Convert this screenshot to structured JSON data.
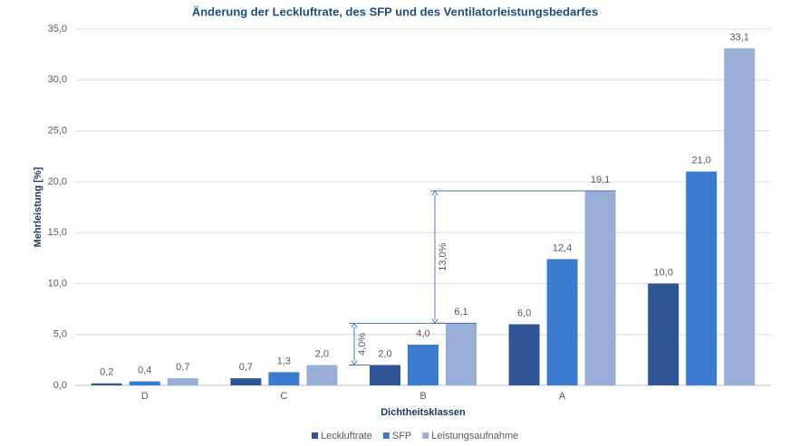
{
  "chart_data": {
    "type": "bar",
    "title": "Änderung der Leckluftrate, des SFP und des Ventilatorleistungsbedarfes",
    "x_label": "Dichtheitsklassen",
    "y_label": "Mehrleistung [%]",
    "categories": [
      "D",
      "C",
      "B",
      "A",
      null
    ],
    "series": [
      {
        "name": "Leckluftrate",
        "color": "#2f5597",
        "values": [
          0.2,
          0.7,
          2.0,
          6.0,
          10.0
        ],
        "value_labels": [
          "0,2",
          "0,7",
          "2,0",
          "6,0",
          "10,0"
        ]
      },
      {
        "name": "SFP",
        "color": "#3a7bd0",
        "values": [
          0.4,
          1.3,
          4.0,
          12.4,
          21.0
        ],
        "value_labels": [
          "0,4",
          "1,3",
          "4,0",
          "12,4",
          "21,0"
        ]
      },
      {
        "name": "Leistungsaufnahme",
        "color": "#98aed6",
        "values": [
          0.7,
          2.0,
          6.1,
          19.1,
          33.1
        ],
        "value_labels": [
          "0,7",
          "2,0",
          "6,1",
          "19,1",
          "33,1"
        ]
      }
    ],
    "ylim": [
      0,
      35
    ],
    "yticks": [
      {
        "value": 0,
        "label": "0,0"
      },
      {
        "value": 5,
        "label": "5,0"
      },
      {
        "value": 10,
        "label": "10,0"
      },
      {
        "value": 15,
        "label": "15,0"
      },
      {
        "value": 20,
        "label": "20,0"
      },
      {
        "value": 25,
        "label": "25,0"
      },
      {
        "value": 30,
        "label": "30,0"
      },
      {
        "value": 35,
        "label": "35,0"
      }
    ],
    "grid": true,
    "legend": "bottom",
    "annotations": [
      "4,0%",
      "13,0%"
    ]
  }
}
